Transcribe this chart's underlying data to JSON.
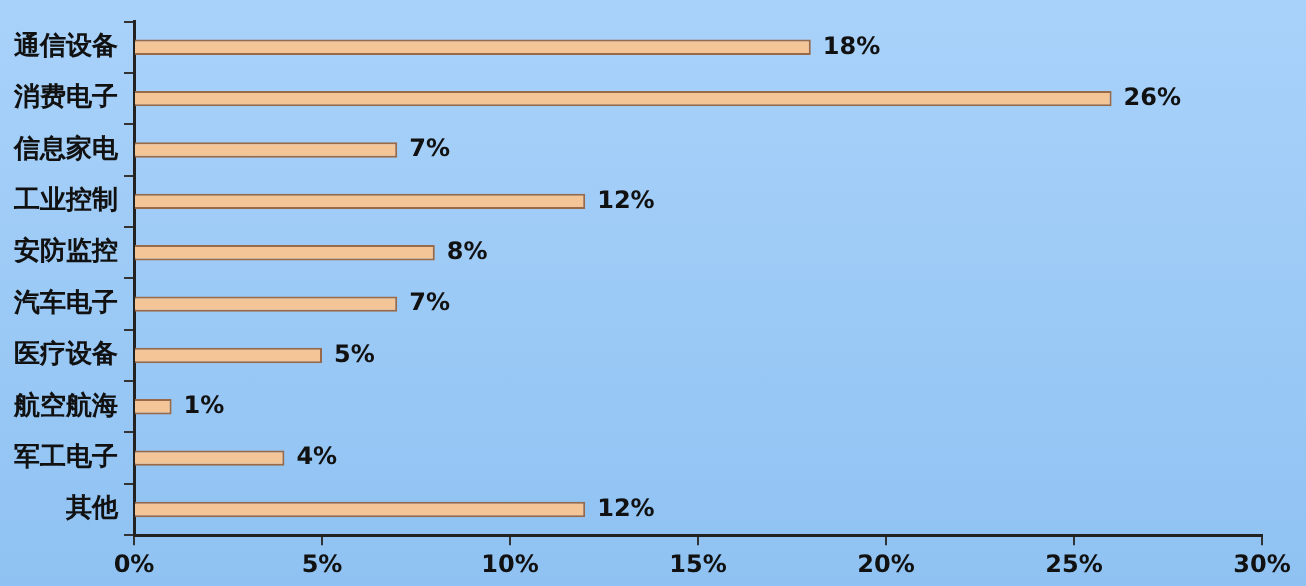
{
  "chart_data": {
    "type": "bar",
    "orientation": "horizontal",
    "categories": [
      "通信设备",
      "消费电子",
      "信息家电",
      "工业控制",
      "安防监控",
      "汽车电子",
      "医疗设备",
      "航空航海",
      "军工电子",
      "其他"
    ],
    "values": [
      18,
      26,
      7,
      12,
      8,
      7,
      5,
      1,
      4,
      12
    ],
    "value_labels": [
      "18%",
      "26%",
      "7%",
      "12%",
      "8%",
      "7%",
      "5%",
      "1%",
      "4%",
      "12%"
    ],
    "color": "#f4c596",
    "xlim": [
      0,
      30
    ],
    "xticks": [
      {
        "value": 0,
        "label": "0%"
      },
      {
        "value": 5,
        "label": "5%"
      },
      {
        "value": 10,
        "label": "10%"
      },
      {
        "value": 15,
        "label": "15%"
      },
      {
        "value": 20,
        "label": "20%"
      },
      {
        "value": 25,
        "label": "25%"
      },
      {
        "value": 30,
        "label": "30%"
      }
    ],
    "grid": false,
    "legend": false
  }
}
